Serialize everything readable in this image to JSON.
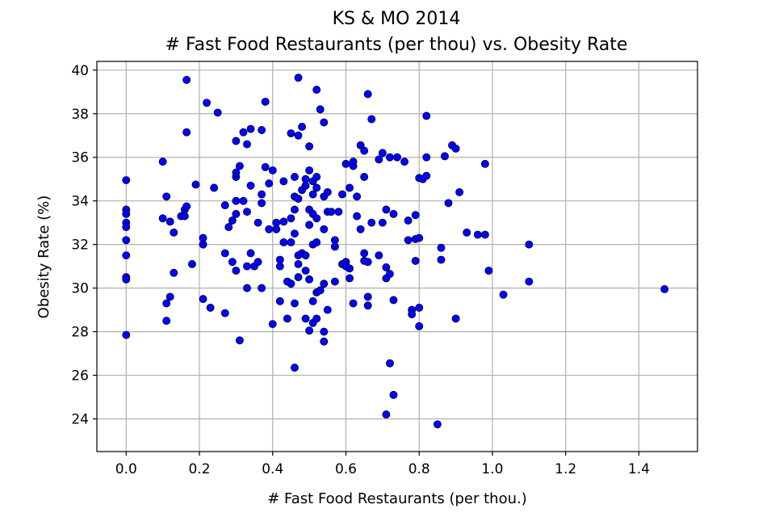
{
  "chart_data": {
    "type": "scatter",
    "title": "KS & MO 2014",
    "subtitle": "# Fast Food Restaurants (per thou) vs. Obesity Rate",
    "xlabel": "# Fast Food Restaurants (per thou.)",
    "ylabel": "Obesity Rate (%)",
    "xlim": [
      -0.08,
      1.56
    ],
    "ylim": [
      22.5,
      40.4
    ],
    "xticks": [
      "0.0",
      "0.2",
      "0.4",
      "0.6",
      "0.8",
      "1.0",
      "1.2",
      "1.4"
    ],
    "yticks": [
      "24",
      "26",
      "28",
      "30",
      "32",
      "34",
      "36",
      "38",
      "40"
    ],
    "grid": true,
    "marker_color": "#0000ff",
    "marker_edge": "#000000",
    "points": [
      [
        0.0,
        34.95
      ],
      [
        0.0,
        33.6
      ],
      [
        0.0,
        33.4
      ],
      [
        0.0,
        33.0
      ],
      [
        0.0,
        32.8
      ],
      [
        0.0,
        32.2
      ],
      [
        0.0,
        31.5
      ],
      [
        0.0,
        30.5
      ],
      [
        0.0,
        30.4
      ],
      [
        0.0,
        27.85
      ],
      [
        0.1,
        35.8
      ],
      [
        0.1,
        33.2
      ],
      [
        0.11,
        34.2
      ],
      [
        0.11,
        29.3
      ],
      [
        0.11,
        28.5
      ],
      [
        0.12,
        29.6
      ],
      [
        0.12,
        33.05
      ],
      [
        0.13,
        32.55
      ],
      [
        0.13,
        30.7
      ],
      [
        0.15,
        33.3
      ],
      [
        0.16,
        33.3
      ],
      [
        0.16,
        33.6
      ],
      [
        0.165,
        33.75
      ],
      [
        0.165,
        37.15
      ],
      [
        0.165,
        39.55
      ],
      [
        0.18,
        31.1
      ],
      [
        0.19,
        34.75
      ],
      [
        0.21,
        32.3
      ],
      [
        0.21,
        32.0
      ],
      [
        0.21,
        29.5
      ],
      [
        0.22,
        38.5
      ],
      [
        0.23,
        29.1
      ],
      [
        0.24,
        34.6
      ],
      [
        0.25,
        38.05
      ],
      [
        0.27,
        33.8
      ],
      [
        0.27,
        31.6
      ],
      [
        0.27,
        28.85
      ],
      [
        0.28,
        32.8
      ],
      [
        0.29,
        33.1
      ],
      [
        0.29,
        31.2
      ],
      [
        0.3,
        35.1
      ],
      [
        0.3,
        35.3
      ],
      [
        0.3,
        36.75
      ],
      [
        0.3,
        34.0
      ],
      [
        0.3,
        33.4
      ],
      [
        0.3,
        30.8
      ],
      [
        0.31,
        35.6
      ],
      [
        0.31,
        27.6
      ],
      [
        0.32,
        37.15
      ],
      [
        0.32,
        34.0
      ],
      [
        0.33,
        36.6
      ],
      [
        0.33,
        31.0
      ],
      [
        0.33,
        33.5
      ],
      [
        0.33,
        30.0
      ],
      [
        0.34,
        37.3
      ],
      [
        0.34,
        34.7
      ],
      [
        0.34,
        31.6
      ],
      [
        0.35,
        31.0
      ],
      [
        0.36,
        33.0
      ],
      [
        0.36,
        31.2
      ],
      [
        0.37,
        37.25
      ],
      [
        0.37,
        34.3
      ],
      [
        0.37,
        33.9
      ],
      [
        0.37,
        30.0
      ],
      [
        0.38,
        38.55
      ],
      [
        0.38,
        35.55
      ],
      [
        0.39,
        34.8
      ],
      [
        0.39,
        32.7
      ],
      [
        0.4,
        35.4
      ],
      [
        0.4,
        28.35
      ],
      [
        0.41,
        32.7
      ],
      [
        0.41,
        33.0
      ],
      [
        0.42,
        31.3
      ],
      [
        0.42,
        31.0
      ],
      [
        0.42,
        29.4
      ],
      [
        0.43,
        33.05
      ],
      [
        0.43,
        34.9
      ],
      [
        0.43,
        32.1
      ],
      [
        0.44,
        30.3
      ],
      [
        0.44,
        28.6
      ],
      [
        0.45,
        37.1
      ],
      [
        0.45,
        33.2
      ],
      [
        0.45,
        32.1
      ],
      [
        0.45,
        30.2
      ],
      [
        0.46,
        35.1
      ],
      [
        0.46,
        34.2
      ],
      [
        0.46,
        33.6
      ],
      [
        0.46,
        32.5
      ],
      [
        0.46,
        29.3
      ],
      [
        0.46,
        26.35
      ],
      [
        0.47,
        39.65
      ],
      [
        0.47,
        37.0
      ],
      [
        0.47,
        34.1
      ],
      [
        0.47,
        31.5
      ],
      [
        0.47,
        31.1
      ],
      [
        0.47,
        30.5
      ],
      [
        0.48,
        37.4
      ],
      [
        0.48,
        34.5
      ],
      [
        0.48,
        31.6
      ],
      [
        0.49,
        35.0
      ],
      [
        0.49,
        34.7
      ],
      [
        0.49,
        31.5
      ],
      [
        0.49,
        30.8
      ],
      [
        0.49,
        28.6
      ],
      [
        0.5,
        36.5
      ],
      [
        0.5,
        35.4
      ],
      [
        0.5,
        33.6
      ],
      [
        0.5,
        32.9
      ],
      [
        0.5,
        30.4
      ],
      [
        0.5,
        28.05
      ],
      [
        0.51,
        34.9
      ],
      [
        0.51,
        34.3
      ],
      [
        0.51,
        33.4
      ],
      [
        0.51,
        32.0
      ],
      [
        0.51,
        29.4
      ],
      [
        0.51,
        28.4
      ],
      [
        0.52,
        39.1
      ],
      [
        0.52,
        35.1
      ],
      [
        0.52,
        34.6
      ],
      [
        0.52,
        33.2
      ],
      [
        0.52,
        32.1
      ],
      [
        0.52,
        29.8
      ],
      [
        0.52,
        28.6
      ],
      [
        0.53,
        38.2
      ],
      [
        0.53,
        29.9
      ],
      [
        0.54,
        37.6
      ],
      [
        0.54,
        34.2
      ],
      [
        0.54,
        32.7
      ],
      [
        0.54,
        30.2
      ],
      [
        0.54,
        28.0
      ],
      [
        0.54,
        27.55
      ],
      [
        0.55,
        34.4
      ],
      [
        0.55,
        33.5
      ],
      [
        0.55,
        29.0
      ],
      [
        0.56,
        33.5
      ],
      [
        0.57,
        32.2
      ],
      [
        0.57,
        31.9
      ],
      [
        0.57,
        30.3
      ],
      [
        0.58,
        33.5
      ],
      [
        0.59,
        34.3
      ],
      [
        0.59,
        31.1
      ],
      [
        0.6,
        31.2
      ],
      [
        0.6,
        31.0
      ],
      [
        0.6,
        35.7
      ],
      [
        0.61,
        34.6
      ],
      [
        0.61,
        30.9
      ],
      [
        0.61,
        30.45
      ],
      [
        0.62,
        35.6
      ],
      [
        0.62,
        35.8
      ],
      [
        0.62,
        29.3
      ],
      [
        0.63,
        33.3
      ],
      [
        0.63,
        34.2
      ],
      [
        0.64,
        36.55
      ],
      [
        0.64,
        32.7
      ],
      [
        0.65,
        36.3
      ],
      [
        0.65,
        35.1
      ],
      [
        0.65,
        31.6
      ],
      [
        0.65,
        31.25
      ],
      [
        0.66,
        38.9
      ],
      [
        0.66,
        31.2
      ],
      [
        0.66,
        29.6
      ],
      [
        0.66,
        29.2
      ],
      [
        0.67,
        37.75
      ],
      [
        0.67,
        33.0
      ],
      [
        0.69,
        35.9
      ],
      [
        0.69,
        31.5
      ],
      [
        0.7,
        36.2
      ],
      [
        0.7,
        33.0
      ],
      [
        0.71,
        33.6
      ],
      [
        0.71,
        30.95
      ],
      [
        0.71,
        30.45
      ],
      [
        0.71,
        24.2
      ],
      [
        0.72,
        26.55
      ],
      [
        0.72,
        30.65
      ],
      [
        0.72,
        36.0
      ],
      [
        0.73,
        33.4
      ],
      [
        0.73,
        29.45
      ],
      [
        0.73,
        25.1
      ],
      [
        0.74,
        36.0
      ],
      [
        0.76,
        35.8
      ],
      [
        0.77,
        33.1
      ],
      [
        0.77,
        32.2
      ],
      [
        0.78,
        29.0
      ],
      [
        0.78,
        28.8
      ],
      [
        0.79,
        33.35
      ],
      [
        0.79,
        32.25
      ],
      [
        0.79,
        31.25
      ],
      [
        0.8,
        35.05
      ],
      [
        0.8,
        32.3
      ],
      [
        0.8,
        29.1
      ],
      [
        0.8,
        28.25
      ],
      [
        0.81,
        35.0
      ],
      [
        0.82,
        37.9
      ],
      [
        0.82,
        35.15
      ],
      [
        0.82,
        36.0
      ],
      [
        0.85,
        23.75
      ],
      [
        0.86,
        31.85
      ],
      [
        0.86,
        31.3
      ],
      [
        0.87,
        36.05
      ],
      [
        0.88,
        33.9
      ],
      [
        0.89,
        36.55
      ],
      [
        0.9,
        36.4
      ],
      [
        0.9,
        28.6
      ],
      [
        0.91,
        34.4
      ],
      [
        0.93,
        32.55
      ],
      [
        0.96,
        32.45
      ],
      [
        0.98,
        32.45
      ],
      [
        0.98,
        35.7
      ],
      [
        0.99,
        30.8
      ],
      [
        1.03,
        29.7
      ],
      [
        1.1,
        32.0
      ],
      [
        1.1,
        30.3
      ],
      [
        1.47,
        29.95
      ]
    ]
  }
}
